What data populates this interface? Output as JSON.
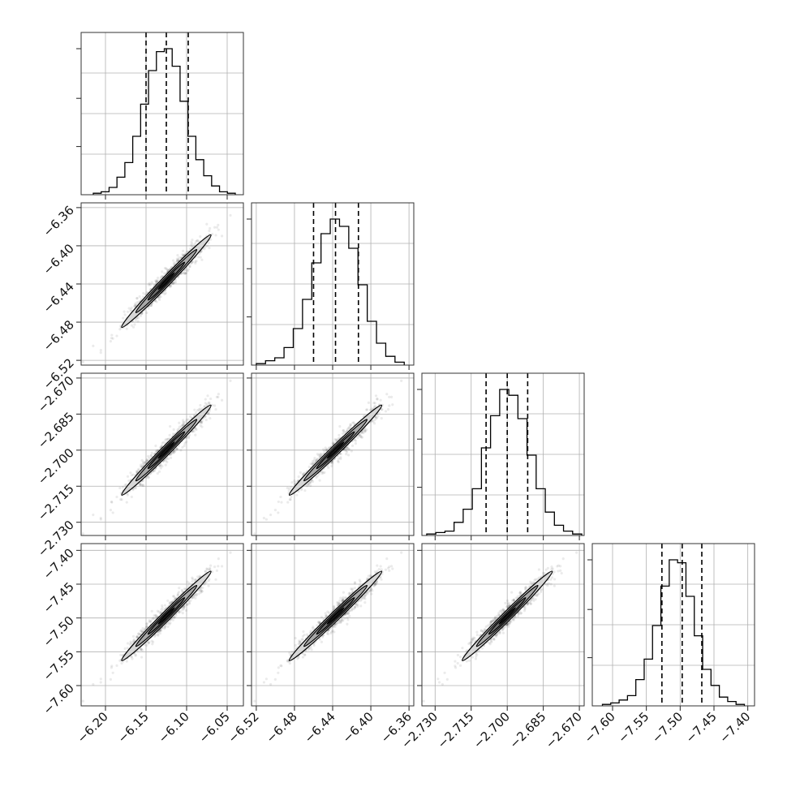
{
  "chart_data": {
    "type": "corner",
    "grid": true,
    "parameters": [
      {
        "range": [
          -6.23,
          -6.03
        ],
        "ticks": [
          -6.2,
          -6.15,
          -6.1,
          -6.05
        ],
        "tick_labels": [
          "−6.20",
          "−6.15",
          "−6.10",
          "−6.05"
        ],
        "mean": -6.125,
        "sd": 0.025,
        "quantiles": [
          -6.15,
          -6.125,
          -6.098
        ],
        "hist_edges_range": [
          -6.215,
          -6.04
        ],
        "hist_counts": [
          1,
          2,
          5,
          12,
          22,
          40,
          62,
          85,
          98,
          100,
          88,
          64,
          40,
          24,
          13,
          6,
          2,
          1
        ]
      },
      {
        "range": [
          -6.525,
          -6.355
        ],
        "ticks": [
          -6.52,
          -6.48,
          -6.44,
          -6.4,
          -6.36
        ],
        "tick_labels": [
          "−6.52",
          "−6.48",
          "−6.44",
          "−6.40",
          "−6.36"
        ],
        "mean": -6.437,
        "sd": 0.022,
        "quantiles": [
          -6.46,
          -6.437,
          -6.413
        ],
        "hist_edges_range": [
          -6.52,
          -6.365
        ],
        "hist_counts": [
          1,
          3,
          5,
          12,
          25,
          45,
          70,
          90,
          100,
          95,
          80,
          55,
          30,
          15,
          6,
          2
        ]
      },
      {
        "range": [
          -2.7355,
          -2.668
        ],
        "ticks": [
          -2.73,
          -2.715,
          -2.7,
          -2.685,
          -2.67
        ],
        "tick_labels": [
          "−2.730",
          "−2.715",
          "−2.700",
          "−2.685",
          "−2.670"
        ],
        "mean": -2.7,
        "sd": 0.0085,
        "quantiles": [
          -2.7088,
          -2.7,
          -2.6915
        ],
        "hist_edges_range": [
          -2.7335,
          -2.669
        ],
        "hist_counts": [
          1,
          2,
          3,
          9,
          18,
          32,
          60,
          82,
          100,
          96,
          80,
          55,
          32,
          16,
          7,
          3,
          1
        ]
      },
      {
        "range": [
          -7.63,
          -7.39
        ],
        "ticks": [
          -7.6,
          -7.55,
          -7.5,
          -7.45,
          -7.4
        ],
        "tick_labels": [
          "−7.60",
          "−7.55",
          "−7.50",
          "−7.45",
          "−7.40"
        ],
        "mean": -7.497,
        "sd": 0.03,
        "quantiles": [
          -7.527,
          -7.497,
          -7.468
        ],
        "hist_edges_range": [
          -7.615,
          -7.405
        ],
        "hist_counts": [
          1,
          2,
          4,
          7,
          18,
          32,
          55,
          82,
          100,
          98,
          75,
          48,
          25,
          14,
          6,
          3,
          1
        ]
      }
    ],
    "pair_correlation": 0.985
  }
}
